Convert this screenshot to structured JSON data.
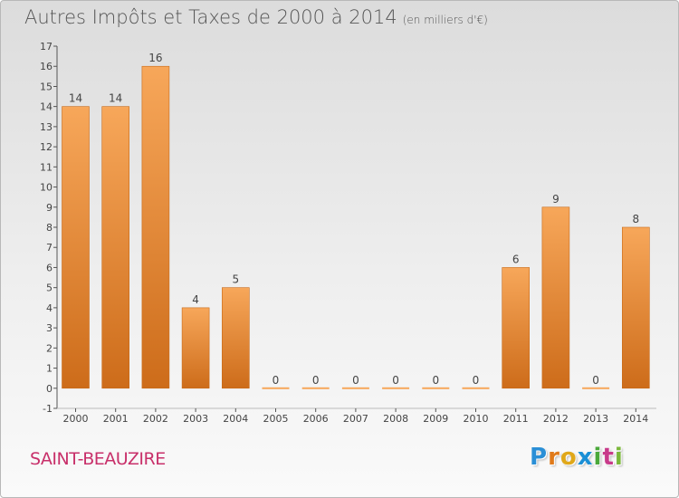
{
  "title": "Autres Impôts et Taxes de 2000 à 2014",
  "subtitle": "(en milliers d'€)",
  "commune": "SAINT-BEAUZIRE",
  "logo": {
    "letters": [
      "P",
      "r",
      "o",
      "x",
      "i",
      "t",
      "i"
    ],
    "colors": [
      "#2a8fd6",
      "#e07a1a",
      "#e0a81a",
      "#1a8fd6",
      "#4aa83a",
      "#c83a8a",
      "#7ab83a"
    ]
  },
  "colors": {
    "bar_top": "#f7a75a",
    "bar_bottom": "#cd6c1a",
    "axis": "#555555",
    "label": "#444444"
  },
  "chart_data": {
    "type": "bar",
    "categories": [
      "2000",
      "2001",
      "2002",
      "2003",
      "2004",
      "2005",
      "2006",
      "2007",
      "2008",
      "2009",
      "2010",
      "2011",
      "2012",
      "2013",
      "2014"
    ],
    "values": [
      14,
      14,
      16,
      4,
      5,
      0,
      0,
      0,
      0,
      0,
      0,
      6,
      9,
      0,
      8
    ],
    "title": "Autres Impôts et Taxes de 2000 à 2014",
    "ylim": [
      -1,
      17
    ],
    "yticks": [
      "-1",
      "0",
      "1",
      "2",
      "3",
      "4",
      "5",
      "6",
      "7",
      "8",
      "9",
      "10",
      "11",
      "12",
      "13",
      "14",
      "15",
      "16",
      "17"
    ],
    "grid": false
  }
}
